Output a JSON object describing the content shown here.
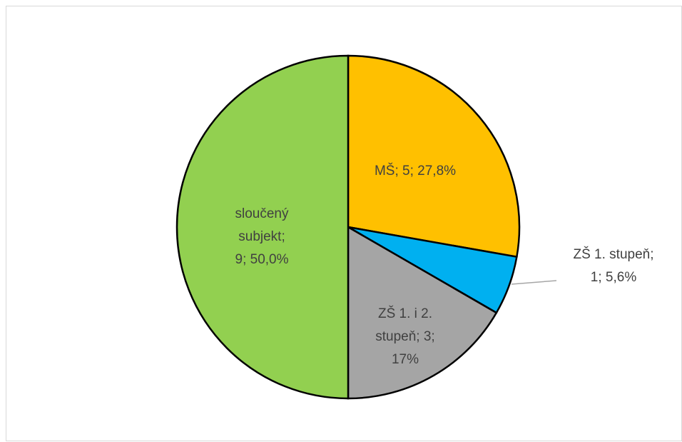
{
  "chart_data": {
    "type": "pie",
    "values": [
      5,
      1,
      3,
      9
    ],
    "value_labels": [
      [
        "MŠ; 5; 27,8%"
      ],
      [
        "ZŠ 1. stupeň;",
        "1; 5,6%"
      ],
      [
        "ZŠ 1. i 2.",
        "stupeň; 3;",
        "17%"
      ],
      [
        "sloučený",
        "subjekt;",
        "9; 50,0%"
      ]
    ],
    "colors": [
      "#ffc000",
      "#00b0f0",
      "#a5a5a5",
      "#92d050"
    ]
  }
}
